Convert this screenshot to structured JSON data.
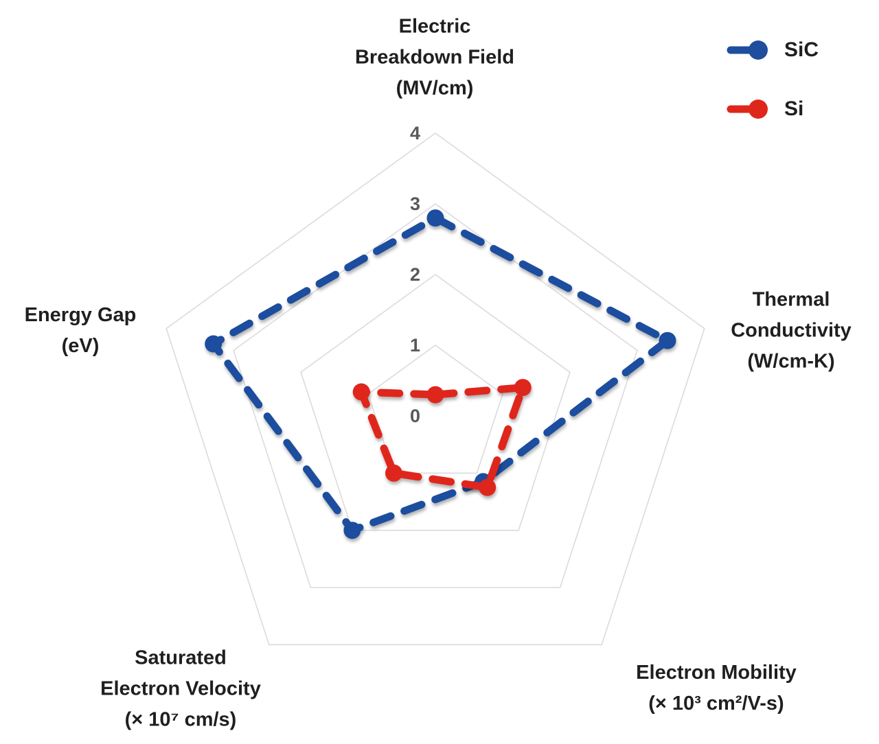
{
  "chart_data": {
    "type": "radar",
    "title": "",
    "ticks": [
      0,
      1,
      2,
      3,
      4
    ],
    "r_range": [
      0,
      4
    ],
    "grid": "concentric pentagon rings, no radial spokes",
    "legend_position": "top-right",
    "tick_color": "#595959",
    "grid_color": "#dbdbdb",
    "axes": [
      {
        "id": "electric-breakdown-field",
        "lines": [
          "Electric",
          "Breakdown Field",
          "(MV/cm)"
        ]
      },
      {
        "id": "thermal-conductivity",
        "lines": [
          "Thermal",
          "Conductivity",
          "(W/cm-K)"
        ]
      },
      {
        "id": "electron-mobility",
        "lines": [
          "Electron Mobility",
          "(× 10³ cm²/V-s)"
        ]
      },
      {
        "id": "saturated-electron-velocity",
        "lines": [
          "Saturated",
          "Electron Velocity",
          "(× 10⁷ cm/s)"
        ]
      },
      {
        "id": "energy-gap",
        "lines": [
          "Energy Gap",
          "(eV)"
        ]
      }
    ],
    "series": [
      {
        "name": "SiC",
        "color": "#1F4E9E",
        "values": [
          2.8,
          3.45,
          1.15,
          2.0,
          3.3
        ]
      },
      {
        "name": "Si",
        "color": "#DF261B",
        "values": [
          0.3,
          1.3,
          1.25,
          1.0,
          1.1
        ]
      }
    ]
  }
}
